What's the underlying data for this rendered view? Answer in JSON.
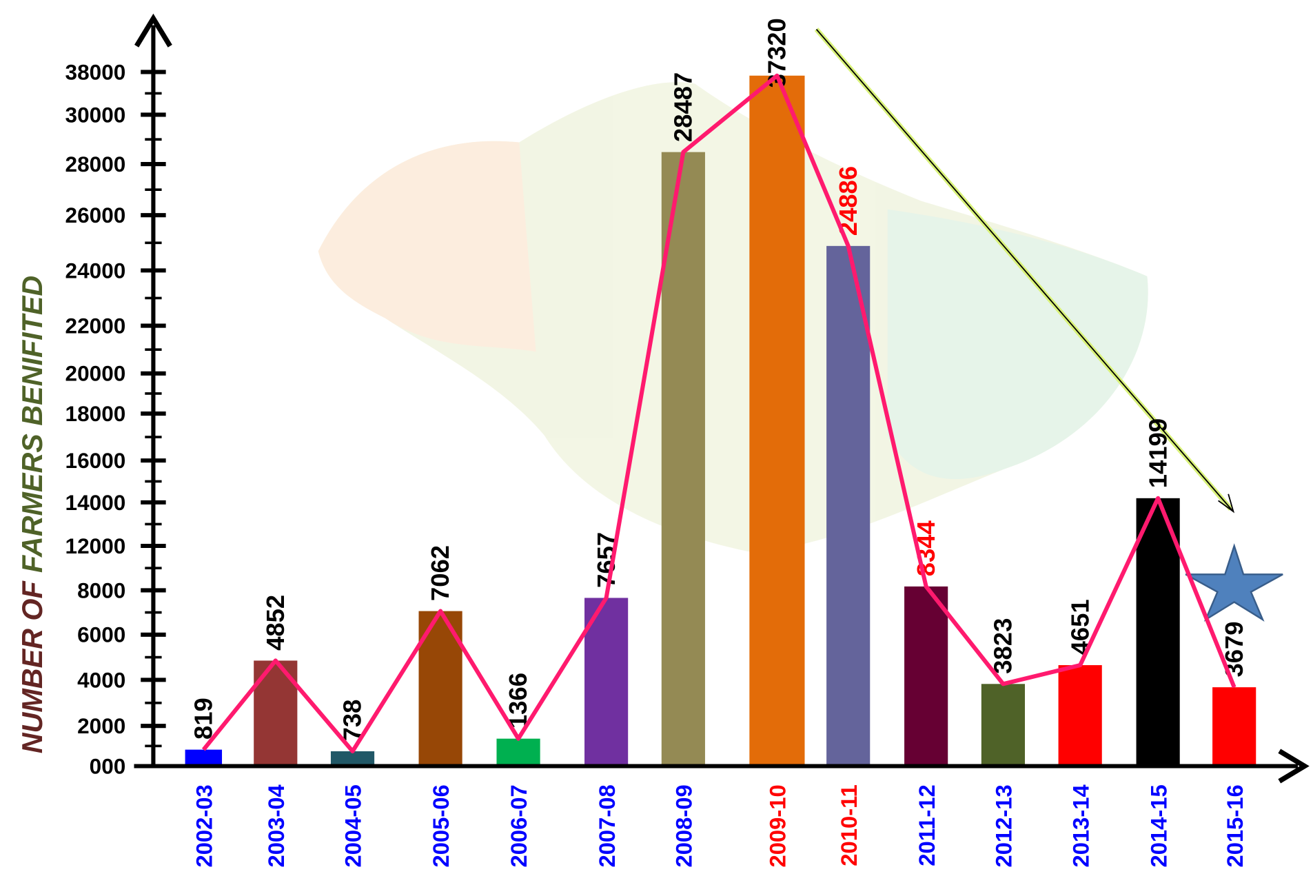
{
  "chart_data": {
    "type": "bar",
    "ylabel": [
      "NUMBER OF",
      "FARMERS BENIFITED"
    ],
    "categories": [
      "2002-03",
      "2003-04",
      "2004-05",
      "2005-06",
      "2006-07",
      "2007-08",
      "2008-09",
      "2009-10",
      "2010-11",
      "2011-12",
      "2012-13",
      "2013-14",
      "2014-15",
      "2015-16"
    ],
    "category_colors": [
      "#0000ff",
      "#0000ff",
      "#0000ff",
      "#0000ff",
      "#0000ff",
      "#0000ff",
      "#0000ff",
      "#ff0000",
      "#ff0000",
      "#0000ff",
      "#0000ff",
      "#0000ff",
      "#0000ff",
      "#0000ff"
    ],
    "values": [
      819,
      4852,
      738,
      7062,
      1366,
      7657,
      28487,
      37320,
      24886,
      8344,
      3823,
      4651,
      14199,
      3679
    ],
    "colors": [
      "#0000ff",
      "#943634",
      "#215867",
      "#974706",
      "#00b050",
      "#7030a0",
      "#948a54",
      "#e36c09",
      "#64649b",
      "#660033",
      "#4f6228",
      "#ff0000",
      "#000000",
      "#ff0000"
    ],
    "value_label_colors": [
      "#000000",
      "#000000",
      "#000000",
      "#000000",
      "#000000",
      "#000000",
      "#000000",
      "#000000",
      "#ff0000",
      "#ff0000",
      "#000000",
      "#000000",
      "#000000",
      "#000000"
    ],
    "line_color": "#ff1a6e",
    "ylim": [
      0,
      38000
    ],
    "yticks": [
      {
        "value": 0,
        "label": "000"
      },
      2000,
      4000,
      6000,
      8000,
      12000,
      14000,
      16000,
      18000,
      20000,
      22000,
      24000,
      26000,
      28000,
      30000,
      38000
    ]
  }
}
